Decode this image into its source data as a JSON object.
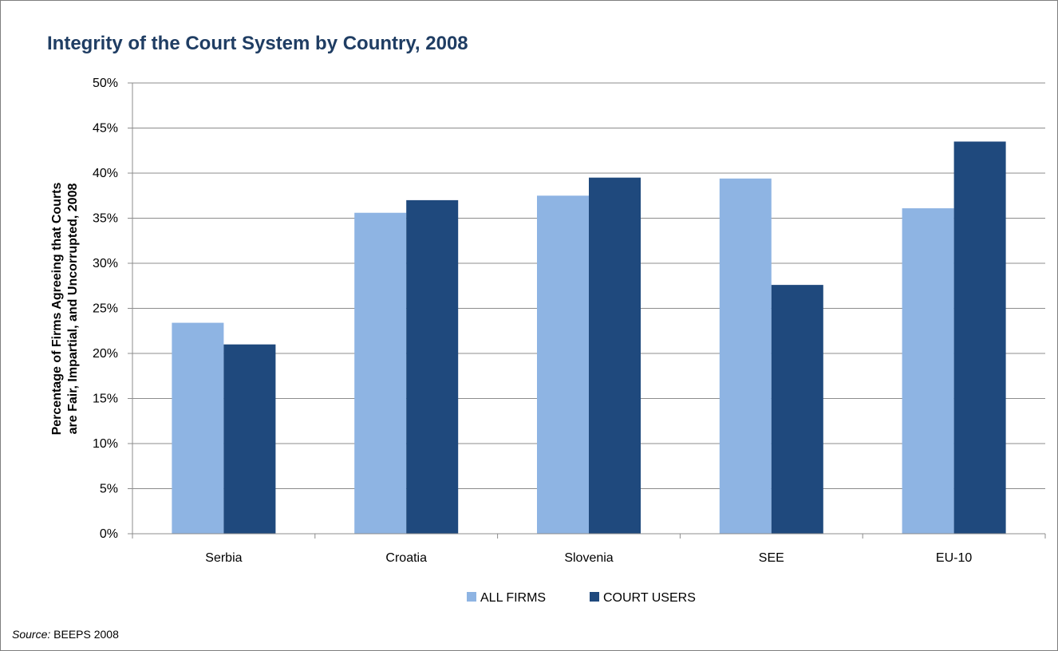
{
  "chart_data": {
    "type": "bar",
    "title": "Integrity of the Court System by Country, 2008",
    "ylabel_lines": [
      "Percentage of Firms Agreeing that Courts",
      "are Fair, Impartial, and Uncorrupted, 2008"
    ],
    "xlabel": "",
    "categories": [
      "Serbia",
      "Croatia",
      "Slovenia",
      "SEE",
      "EU-10"
    ],
    "series": [
      {
        "name": "ALL FIRMS",
        "color": "#8eb4e3",
        "values": [
          23.4,
          35.6,
          37.5,
          39.4,
          36.1
        ]
      },
      {
        "name": "COURT USERS",
        "color": "#1f497d",
        "values": [
          21.0,
          37.0,
          39.5,
          27.6,
          43.5
        ]
      }
    ],
    "ylim": [
      0,
      50
    ],
    "yticks": [
      0,
      5,
      10,
      15,
      20,
      25,
      30,
      35,
      40,
      45,
      50
    ],
    "ytick_suffix": "%",
    "grid": true,
    "legend_position": "bottom"
  },
  "source": {
    "label": "Source:",
    "text": "BEEPS 2008"
  }
}
